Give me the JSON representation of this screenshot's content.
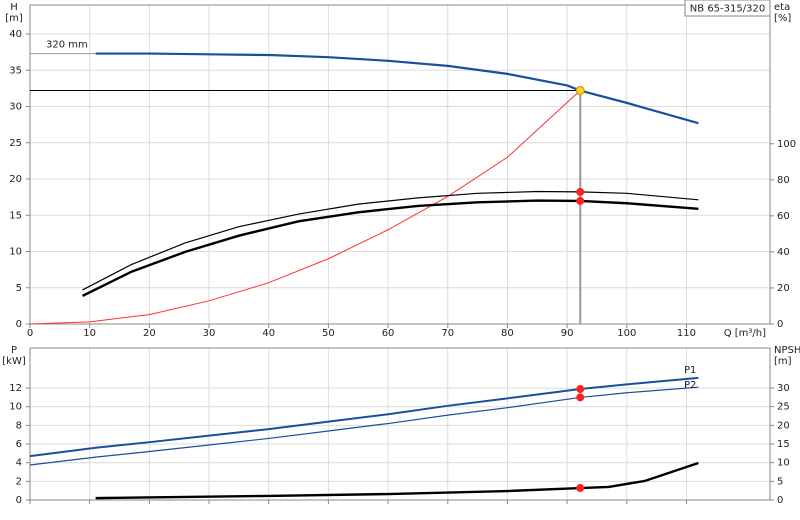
{
  "chart_data": [
    {
      "type": "line",
      "title": "NB 65-315/320",
      "x_label": "Q [m³/h]",
      "y_label": "H",
      "y_unit": "[m]",
      "y2_label": "eta",
      "y2_unit": "[%]",
      "xlim": [
        0,
        124
      ],
      "xticks": [
        0,
        10,
        20,
        30,
        40,
        50,
        60,
        70,
        80,
        90,
        100,
        110
      ],
      "ylim": [
        0,
        44
      ],
      "yticks": [
        0,
        5,
        10,
        15,
        20,
        25,
        30,
        35,
        40
      ],
      "y2lim": [
        0,
        177
      ],
      "y2ticks": [
        0,
        20,
        40,
        60,
        80,
        100
      ],
      "grid": true,
      "duty_q": 92.2,
      "duty_lines": true,
      "series": [
        {
          "name": "320 mm",
          "color": "#1a4f9c",
          "line_width": 2.2,
          "marker_color": "#ffd21f",
          "x": [
            11,
            20,
            30,
            40,
            50,
            60,
            70,
            80,
            90,
            92.2,
            100,
            112
          ],
          "values": [
            37.3,
            37.3,
            37.2,
            37.1,
            36.8,
            36.3,
            35.6,
            34.5,
            32.9,
            32.2,
            30.5,
            27.7
          ]
        },
        {
          "color": "#ff3030",
          "line_width": 1,
          "x": [
            0,
            10,
            20,
            30,
            40,
            50,
            60,
            70,
            80,
            92.2
          ],
          "values": [
            0,
            0.3,
            1.3,
            3.2,
            5.7,
            9,
            13,
            17.6,
            23,
            32.2
          ]
        },
        {
          "color": "#000000",
          "line_width": 1.2,
          "axis": "y2",
          "marker_color": "#ff2020",
          "x": [
            8.8,
            17,
            26,
            35,
            45,
            55,
            65,
            75,
            85,
            92.2,
            100,
            112
          ],
          "values": [
            18.9,
            33,
            45,
            54,
            61,
            66.5,
            70,
            72.5,
            73.5,
            73.3,
            72.5,
            68.9
          ]
        },
        {
          "color": "#000000",
          "line_width": 2.4,
          "axis": "y2",
          "marker_color": "#ff2020",
          "x": [
            8.8,
            17,
            26,
            35,
            45,
            55,
            65,
            75,
            85,
            92.2,
            100,
            112
          ],
          "values": [
            15.6,
            29,
            40,
            49,
            57,
            62,
            65.5,
            67.5,
            68.5,
            68.3,
            67,
            63.9
          ]
        }
      ]
    },
    {
      "type": "line",
      "y_label": "P",
      "y_unit": "[kW]",
      "y2_label": "NPSH",
      "y2_unit": "[m]",
      "xlim": [
        0,
        124
      ],
      "xticks": [
        0,
        10,
        20,
        30,
        40,
        50,
        60,
        70,
        80,
        90,
        100,
        110
      ],
      "ylim": [
        0,
        16.3
      ],
      "yticks": [
        0,
        2,
        4,
        6,
        8,
        10,
        12
      ],
      "y2lim": [
        0,
        40.7
      ],
      "y2ticks": [
        0,
        5,
        10,
        15,
        20,
        25,
        30
      ],
      "grid": true,
      "duty_q": 92.2,
      "series": [
        {
          "name": "P1",
          "color": "#1a4f9c",
          "line_width": 2,
          "marker_color": "#ff2020",
          "x": [
            0,
            11,
            20,
            30,
            40,
            50,
            60,
            70,
            80,
            92.2,
            100,
            112
          ],
          "values": [
            4.7,
            5.6,
            6.2,
            6.9,
            7.6,
            8.4,
            9.2,
            10.1,
            10.9,
            11.9,
            12.4,
            13.1
          ]
        },
        {
          "name": "P2",
          "color": "#1a4f9c",
          "line_width": 1.2,
          "marker_color": "#ff2020",
          "x": [
            0,
            11,
            20,
            30,
            40,
            50,
            60,
            70,
            80,
            92.2,
            100,
            112
          ],
          "values": [
            3.75,
            4.6,
            5.2,
            5.9,
            6.6,
            7.4,
            8.2,
            9.1,
            9.9,
            11,
            11.5,
            12.1
          ]
        },
        {
          "color": "#000000",
          "line_width": 2.4,
          "axis": "y2",
          "marker_color": "#ff2020",
          "x": [
            11,
            40,
            60,
            80,
            92.2,
            97,
            103,
            112
          ],
          "values": [
            0.5,
            1.1,
            1.6,
            2.4,
            3.2,
            3.5,
            5.1,
            9.9
          ]
        }
      ]
    }
  ]
}
